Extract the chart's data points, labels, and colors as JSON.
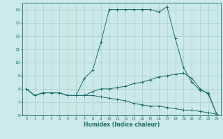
{
  "xlabel": "Humidex (Indice chaleur)",
  "ylabel": "",
  "xlim": [
    -0.5,
    23.5
  ],
  "ylim": [
    6,
    14.5
  ],
  "yticks": [
    6,
    7,
    8,
    9,
    10,
    11,
    12,
    13,
    14
  ],
  "xticks": [
    0,
    1,
    2,
    3,
    4,
    5,
    6,
    7,
    8,
    9,
    10,
    11,
    12,
    13,
    14,
    15,
    16,
    17,
    18,
    19,
    20,
    21,
    22,
    23
  ],
  "bg_color": "#cce8ea",
  "grid_color": "#aacccc",
  "line_color": "#1a6b6b",
  "line1": {
    "x": [
      0,
      1,
      2,
      3,
      4,
      5,
      6,
      7,
      8,
      9,
      10,
      11,
      12,
      13,
      14,
      15,
      16,
      17,
      18,
      19,
      20,
      21,
      22,
      23
    ],
    "y": [
      8.0,
      7.5,
      7.7,
      7.7,
      7.7,
      7.5,
      7.5,
      8.8,
      9.4,
      11.5,
      14.0,
      14.0,
      14.0,
      14.0,
      14.0,
      14.0,
      13.8,
      14.2,
      11.8,
      9.6,
      8.5,
      7.9,
      7.7,
      6.1
    ]
  },
  "line2": {
    "x": [
      0,
      1,
      2,
      3,
      4,
      5,
      6,
      7,
      8,
      9,
      10,
      11,
      12,
      13,
      14,
      15,
      16,
      17,
      18,
      19,
      20,
      21,
      22,
      23
    ],
    "y": [
      8.0,
      7.5,
      7.7,
      7.7,
      7.7,
      7.5,
      7.5,
      7.5,
      7.8,
      8.0,
      8.0,
      8.1,
      8.2,
      8.4,
      8.5,
      8.7,
      8.9,
      9.0,
      9.1,
      9.2,
      8.8,
      8.0,
      7.6,
      6.1
    ]
  },
  "line3": {
    "x": [
      0,
      1,
      2,
      3,
      4,
      5,
      6,
      7,
      8,
      9,
      10,
      11,
      12,
      13,
      14,
      15,
      16,
      17,
      18,
      19,
      20,
      21,
      22,
      23
    ],
    "y": [
      8.0,
      7.5,
      7.7,
      7.7,
      7.7,
      7.5,
      7.5,
      7.5,
      7.5,
      7.4,
      7.3,
      7.2,
      7.1,
      6.9,
      6.8,
      6.7,
      6.7,
      6.6,
      6.5,
      6.4,
      6.4,
      6.3,
      6.2,
      6.1
    ]
  },
  "figsize": [
    3.2,
    2.0
  ],
  "dpi": 100
}
